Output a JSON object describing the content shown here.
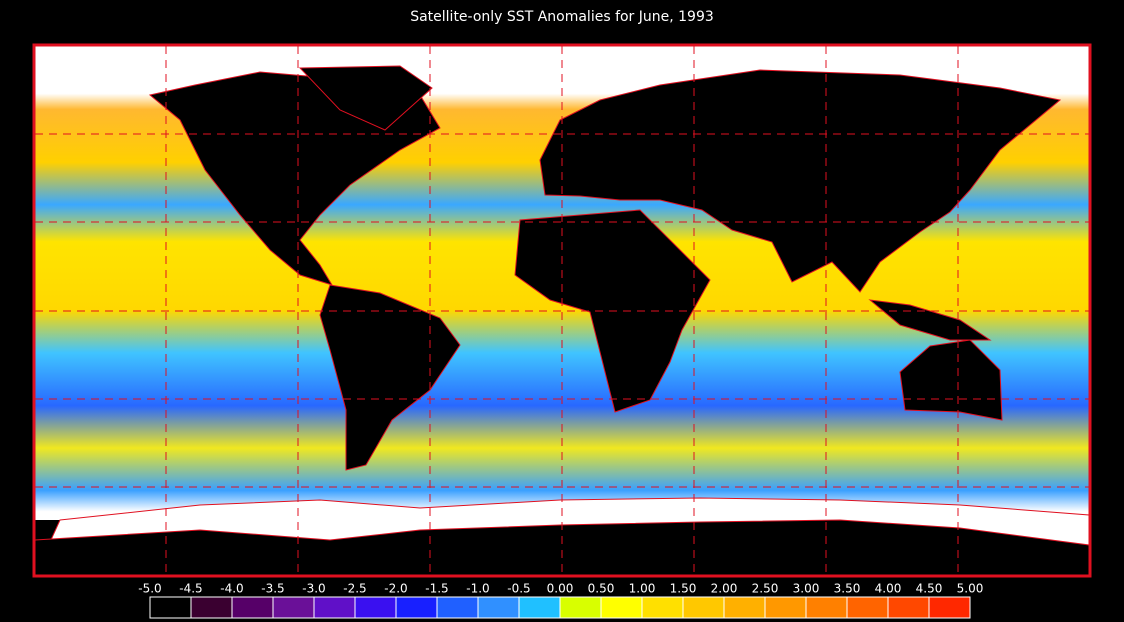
{
  "header": {
    "title": "Satellite-only SST Anomalies for June, 1993"
  },
  "colorbar": {
    "labels": [
      "-5.0",
      "-4.5",
      "-4.0",
      "-3.5",
      "-3.0",
      "-2.5",
      "-2.0",
      "-1.5",
      "-1.0",
      "-0.5",
      "0.00",
      "0.50",
      "1.00",
      "1.50",
      "2.00",
      "2.50",
      "3.00",
      "3.50",
      "4.00",
      "4.50",
      "5.00"
    ],
    "colors": [
      "#000000",
      "#3a0030",
      "#560068",
      "#6a1098",
      "#6010c8",
      "#3a10f0",
      "#1820ff",
      "#2060ff",
      "#3090ff",
      "#20c0ff",
      "#d8ff00",
      "#ffff00",
      "#ffe000",
      "#ffc800",
      "#ffb000",
      "#ff9800",
      "#ff8000",
      "#ff6400",
      "#ff4800",
      "#ff2800"
    ]
  }
}
